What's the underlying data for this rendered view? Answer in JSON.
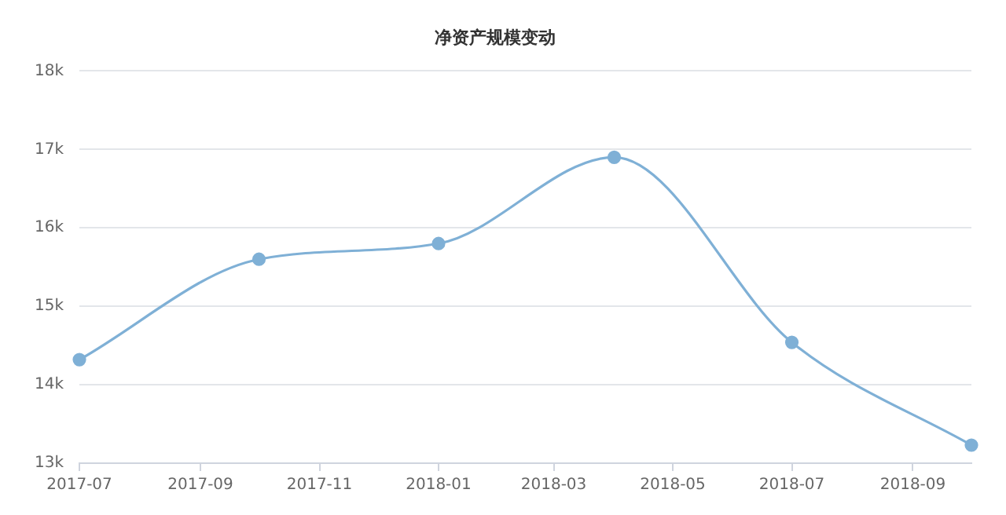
{
  "chart_data": {
    "type": "line",
    "title": "净资产规模变动",
    "x": [
      "2017-07",
      "2017-10",
      "2018-01",
      "2018-04",
      "2018-07",
      "2018-10"
    ],
    "series": [
      {
        "color": "#7fb0d6",
        "values": [
          14.32,
          15.6,
          15.8,
          16.9,
          14.54,
          13.23
        ]
      }
    ],
    "xlim": [
      "2017-07",
      "2018-10"
    ],
    "xticks": [
      "2017-07",
      "2017-09",
      "2017-11",
      "2018-01",
      "2018-03",
      "2018-05",
      "2018-07",
      "2018-09"
    ],
    "ylim": [
      13,
      18
    ],
    "yticks": [
      {
        "value": 13,
        "label": "13k"
      },
      {
        "value": 14,
        "label": "14k"
      },
      {
        "value": 15,
        "label": "15k"
      },
      {
        "value": 16,
        "label": "16k"
      },
      {
        "value": 17,
        "label": "17k"
      },
      {
        "value": 18,
        "label": "18k"
      }
    ],
    "grid": "y",
    "legend": false,
    "marker": "circle",
    "line_style": "solid"
  }
}
